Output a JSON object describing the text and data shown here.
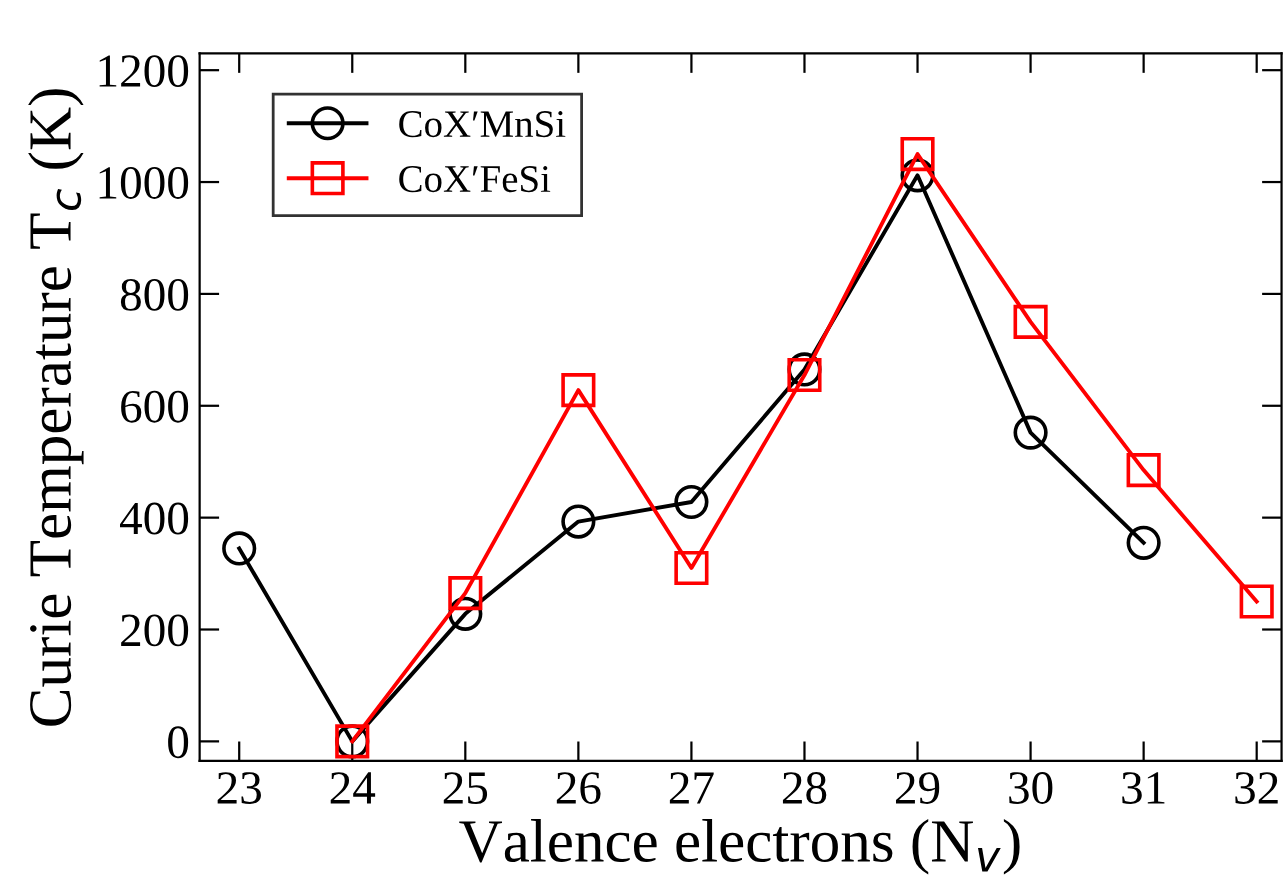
{
  "chart_data": {
    "type": "line",
    "xlabel": "Valence electrons (N$_{v}$)",
    "ylabel": "Curie Temperature T$_{c}$ (K)",
    "xlim": [
      22.65,
      32.22
    ],
    "xticks": [
      23,
      24,
      25,
      26,
      27,
      28,
      29,
      30,
      31,
      32
    ],
    "ylim": [
      -35,
      1230
    ],
    "yticks": [
      0,
      200,
      400,
      600,
      800,
      1000,
      1200
    ],
    "legend": "top left",
    "line_style": "solid",
    "grid": false,
    "series": [
      {
        "name": "CoX′MnSi",
        "color": "#000000",
        "marker": "circle",
        "x": [
          23,
          24,
          25,
          26,
          27,
          28,
          29,
          30,
          31
        ],
        "values": [
          345,
          0,
          228,
          393,
          428,
          665,
          1012,
          552,
          355
        ]
      },
      {
        "name": "CoX′FeSi",
        "color": "#ff0000",
        "marker": "square",
        "x": [
          24,
          25,
          26,
          27,
          28,
          29,
          30,
          31,
          32
        ],
        "values": [
          0,
          265,
          628,
          310,
          655,
          1050,
          750,
          485,
          250
        ]
      }
    ]
  }
}
